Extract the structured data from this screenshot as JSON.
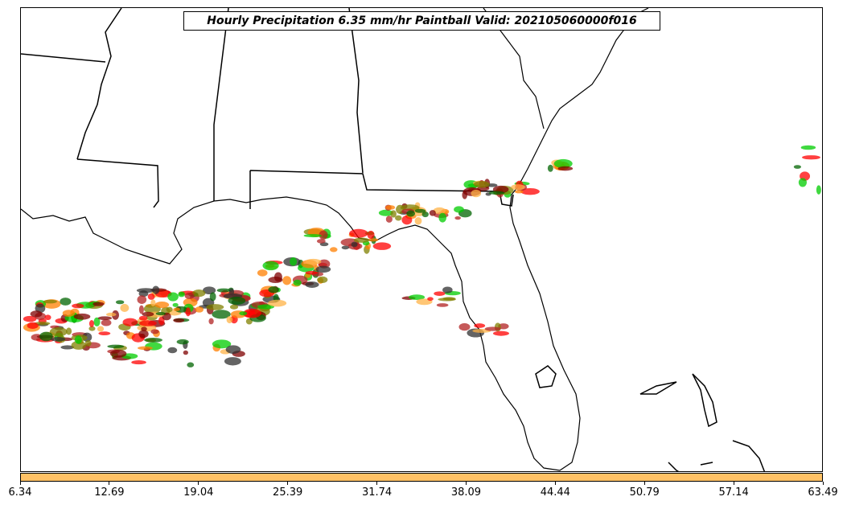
{
  "title": "Hourly Precipitation 6.35 mm/hr Paintball Valid: 202105060000f016",
  "colorbar": {
    "color": "#ffc266",
    "ticks": [
      "6.34",
      "12.69",
      "19.04",
      "25.39",
      "31.74",
      "38.09",
      "44.44",
      "50.79",
      "57.14",
      "63.49"
    ]
  },
  "map": {
    "region": "Southeastern United States and Gulf of Mexico",
    "coastline_color": "#000000",
    "background_color": "#ffffff",
    "paintball_colors": [
      "#ff0000",
      "#ff7f00",
      "#006400",
      "#808000",
      "#7f0000",
      "#00cc00",
      "#303030",
      "#ffb347",
      "#b22222"
    ]
  }
}
